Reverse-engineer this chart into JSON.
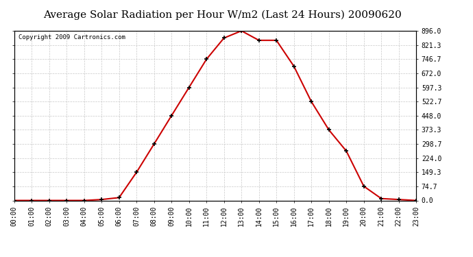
{
  "title": "Average Solar Radiation per Hour W/m2 (Last 24 Hours) 20090620",
  "copyright": "Copyright 2009 Cartronics.com",
  "hours": [
    "00:00",
    "01:00",
    "02:00",
    "03:00",
    "04:00",
    "05:00",
    "06:00",
    "07:00",
    "08:00",
    "09:00",
    "10:00",
    "11:00",
    "12:00",
    "13:00",
    "14:00",
    "15:00",
    "16:00",
    "17:00",
    "18:00",
    "19:00",
    "20:00",
    "21:00",
    "22:00",
    "23:00"
  ],
  "values": [
    0,
    0,
    0,
    0,
    0,
    5,
    15,
    149,
    298,
    448,
    597,
    746,
    858,
    896,
    846,
    846,
    709,
    522,
    373,
    261,
    75,
    10,
    5,
    0
  ],
  "line_color": "#cc0000",
  "marker": "+",
  "background_color": "#ffffff",
  "grid_color": "#c8c8c8",
  "ylim": [
    0,
    896.0
  ],
  "yticks": [
    0.0,
    74.7,
    149.3,
    224.0,
    298.7,
    373.3,
    448.0,
    522.7,
    597.3,
    672.0,
    746.7,
    821.3,
    896.0
  ],
  "title_fontsize": 11,
  "copyright_fontsize": 6.5,
  "tick_fontsize": 7
}
